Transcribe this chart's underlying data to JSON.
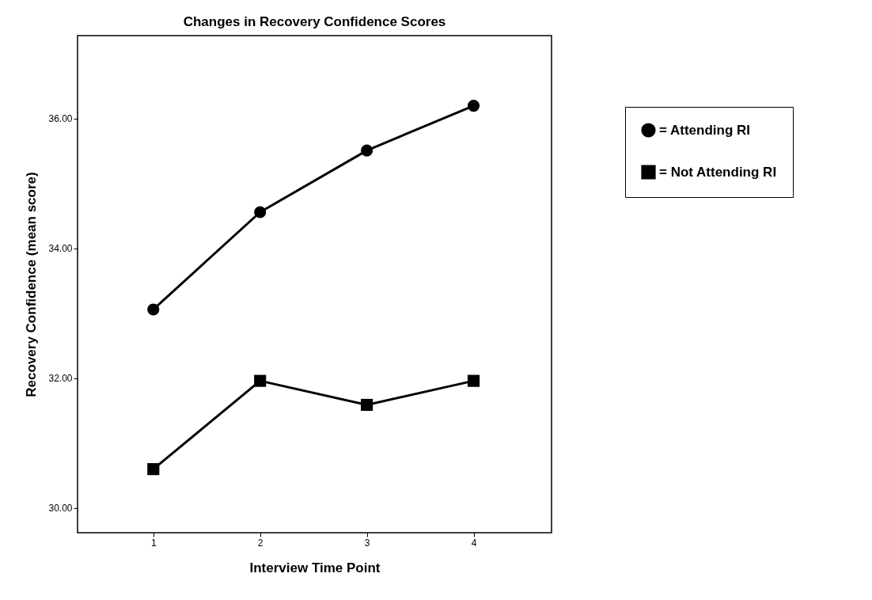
{
  "chart_data": {
    "type": "line",
    "title": "Changes in Recovery Confidence Scores",
    "xlabel": "Interview Time Point",
    "ylabel": "Recovery Confidence (mean score)",
    "x": [
      1,
      2,
      3,
      4
    ],
    "series": [
      {
        "name": "= Attending RI",
        "color": "#000000",
        "marker": "circle",
        "values": [
          33.06,
          34.56,
          35.51,
          36.2
        ]
      },
      {
        "name": "= Not Attending RI",
        "color": "#000000",
        "marker": "square",
        "values": [
          30.6,
          31.96,
          31.59,
          31.96
        ]
      }
    ],
    "xlim": [
      0.29,
      4.73
    ],
    "xticks": [
      1,
      2,
      3,
      4
    ],
    "ylim": [
      29.62,
      37.28
    ],
    "yticks": [
      {
        "value": 30,
        "label": "30.00"
      },
      {
        "value": 32,
        "label": "32.00"
      },
      {
        "value": 34,
        "label": "34.00"
      },
      {
        "value": 36,
        "label": "36.00"
      }
    ],
    "grid": false,
    "legend": "right",
    "line_style": "solid"
  }
}
